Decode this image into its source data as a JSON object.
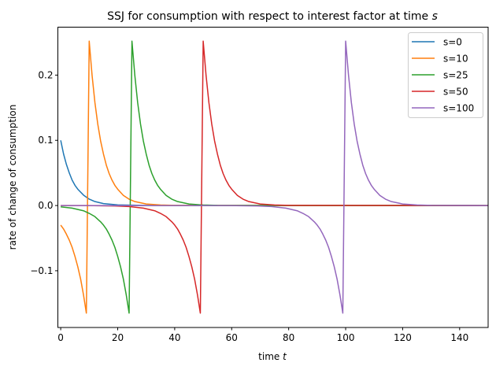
{
  "chart_data": {
    "type": "line",
    "title": "SSJ for consumption with respect to interest factor at time ",
    "title_italic": "s",
    "xlabel": "time ",
    "xlabel_italic": "t",
    "ylabel": "rate of change of consumption",
    "xlim": [
      -1,
      150
    ],
    "ylim": [
      -0.187,
      0.2735
    ],
    "xticks": [
      0,
      20,
      40,
      60,
      80,
      100,
      120,
      140
    ],
    "yticks": [
      -0.1,
      0.0,
      0.1,
      0.2
    ],
    "ytick_labels": [
      "−0.1",
      "0.0",
      "0.1",
      "0.2"
    ],
    "grid": false,
    "legend_position": "top-right",
    "series": [
      {
        "name": "s=0",
        "color": "#1f77b4",
        "x": [
          0,
          1,
          2,
          3,
          4,
          5,
          6,
          8,
          10,
          12,
          15,
          20,
          30,
          150
        ],
        "y": [
          0.1,
          0.079,
          0.063,
          0.05,
          0.039,
          0.031,
          0.025,
          0.016,
          0.0098,
          0.0061,
          0.003,
          0.001,
          0.0001,
          0
        ]
      },
      {
        "name": "s=10",
        "color": "#ff7f0e",
        "x": [
          0,
          1,
          2,
          3,
          4,
          5,
          6,
          7,
          8,
          9,
          10,
          11,
          12,
          13,
          14,
          15,
          16,
          17,
          18,
          19,
          20,
          22,
          24,
          26,
          30,
          35,
          40,
          150
        ],
        "y": [
          -0.03,
          -0.036,
          -0.044,
          -0.053,
          -0.064,
          -0.078,
          -0.094,
          -0.113,
          -0.137,
          -0.165,
          0.252,
          0.2,
          0.158,
          0.125,
          0.099,
          0.079,
          0.062,
          0.049,
          0.039,
          0.031,
          0.025,
          0.0155,
          0.0097,
          0.0061,
          0.0024,
          0.0008,
          0.0002,
          0
        ]
      },
      {
        "name": "s=25",
        "color": "#2ca02c",
        "x": [
          0,
          4,
          8,
          10,
          12,
          14,
          15,
          16,
          17,
          18,
          19,
          20,
          21,
          22,
          23,
          24,
          25,
          26,
          27,
          28,
          29,
          30,
          31,
          32,
          33,
          34,
          35,
          37,
          39,
          41,
          45,
          50,
          55,
          150
        ],
        "y": [
          -0.002,
          -0.004,
          -0.008,
          -0.012,
          -0.017,
          -0.025,
          -0.03,
          -0.036,
          -0.044,
          -0.053,
          -0.064,
          -0.078,
          -0.094,
          -0.113,
          -0.137,
          -0.165,
          0.252,
          0.2,
          0.158,
          0.125,
          0.099,
          0.079,
          0.062,
          0.049,
          0.039,
          0.031,
          0.025,
          0.0155,
          0.0097,
          0.0061,
          0.0024,
          0.0008,
          0.0002,
          0
        ]
      },
      {
        "name": "s=50",
        "color": "#d62728",
        "x": [
          0,
          9,
          19,
          24,
          29,
          33,
          35,
          37,
          39,
          40,
          41,
          42,
          43,
          44,
          45,
          46,
          47,
          48,
          49,
          50,
          51,
          52,
          53,
          54,
          55,
          56,
          57,
          58,
          59,
          60,
          62,
          64,
          66,
          70,
          75,
          80,
          150
        ],
        "y": [
          0,
          0,
          -0.0006,
          -0.0015,
          -0.004,
          -0.008,
          -0.012,
          -0.017,
          -0.025,
          -0.03,
          -0.036,
          -0.044,
          -0.053,
          -0.064,
          -0.078,
          -0.094,
          -0.113,
          -0.137,
          -0.165,
          0.252,
          0.2,
          0.158,
          0.125,
          0.099,
          0.079,
          0.062,
          0.049,
          0.039,
          0.031,
          0.025,
          0.0155,
          0.0097,
          0.0061,
          0.0024,
          0.0008,
          0.0002,
          0
        ]
      },
      {
        "name": "s=100",
        "color": "#9467bd",
        "x": [
          0,
          59,
          69,
          74,
          79,
          83,
          85,
          87,
          89,
          90,
          91,
          92,
          93,
          94,
          95,
          96,
          97,
          98,
          99,
          100,
          101,
          102,
          103,
          104,
          105,
          106,
          107,
          108,
          109,
          110,
          112,
          114,
          116,
          120,
          125,
          130,
          150
        ],
        "y": [
          0,
          0,
          -0.0006,
          -0.0015,
          -0.004,
          -0.008,
          -0.012,
          -0.017,
          -0.025,
          -0.03,
          -0.036,
          -0.044,
          -0.053,
          -0.064,
          -0.078,
          -0.094,
          -0.113,
          -0.137,
          -0.165,
          0.252,
          0.2,
          0.158,
          0.125,
          0.099,
          0.079,
          0.062,
          0.049,
          0.039,
          0.031,
          0.025,
          0.0155,
          0.0097,
          0.0061,
          0.0024,
          0.0008,
          0.0002,
          0
        ]
      }
    ]
  }
}
